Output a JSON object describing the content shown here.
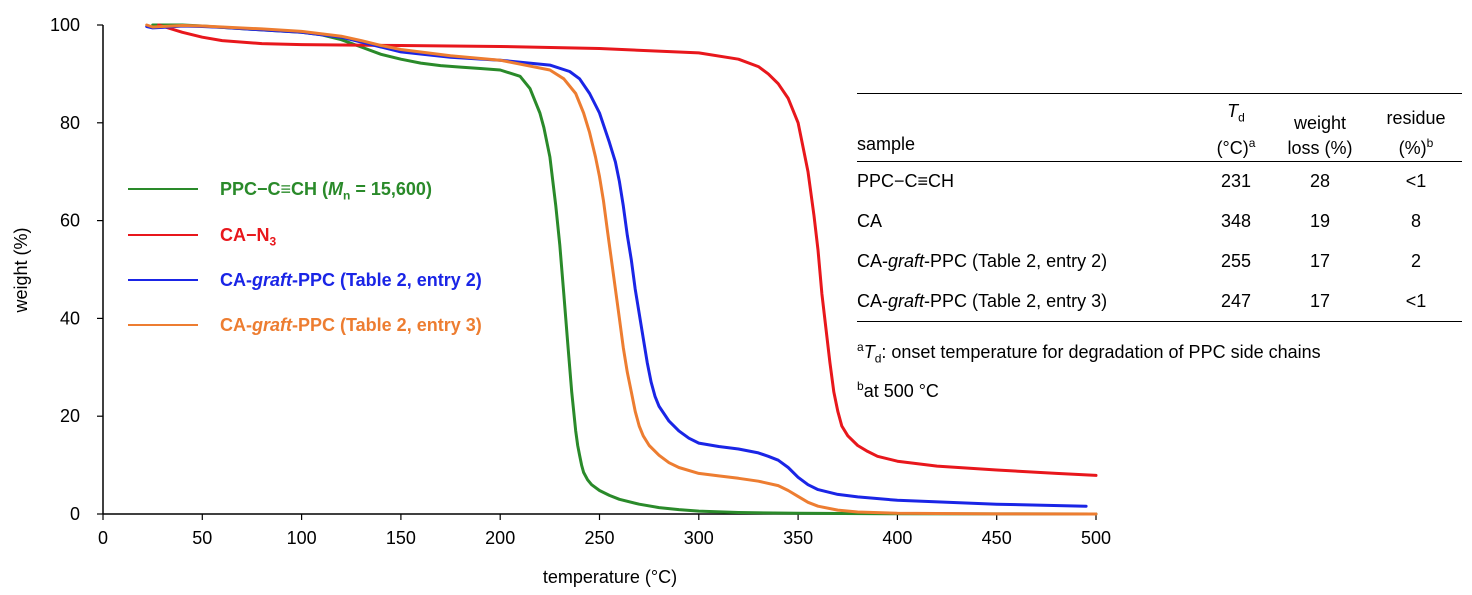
{
  "chart_data": {
    "type": "line",
    "xlabel": "temperature (°C)",
    "ylabel": "weight (%)",
    "xlim": [
      0,
      500
    ],
    "ylim": [
      0,
      100
    ],
    "xticks": [
      0,
      50,
      100,
      150,
      200,
      250,
      300,
      350,
      400,
      450,
      500
    ],
    "yticks": [
      0,
      20,
      40,
      60,
      80,
      100
    ],
    "grid": false,
    "legend_position": "left-middle",
    "series": [
      {
        "name": "PPC−C≡CH (Mn = 15,600)",
        "color": "#2a8a2a",
        "x": [
          25,
          30,
          40,
          50,
          60,
          80,
          100,
          110,
          120,
          130,
          140,
          150,
          160,
          170,
          180,
          190,
          200,
          210,
          215,
          220,
          222,
          225,
          228,
          230,
          232,
          234,
          236,
          238,
          239,
          240,
          241,
          242,
          244,
          246,
          250,
          255,
          260,
          270,
          280,
          290,
          300,
          320,
          350,
          400,
          450,
          500
        ],
        "y": [
          100,
          100,
          100,
          99.8,
          99.5,
          99,
          98.5,
          98,
          97,
          95.5,
          94,
          93,
          92.2,
          91.7,
          91.4,
          91.1,
          90.8,
          89.5,
          87,
          82,
          79,
          73,
          63,
          55,
          45,
          35,
          25,
          17,
          14,
          12,
          10,
          8.5,
          7,
          6,
          4.8,
          3.8,
          3,
          2,
          1.3,
          0.9,
          0.6,
          0.3,
          0.15,
          0.05,
          0.02,
          0
        ]
      },
      {
        "name": "CA−N3",
        "color": "#e8171c",
        "x": [
          28,
          40,
          50,
          60,
          80,
          100,
          150,
          200,
          250,
          300,
          320,
          330,
          335,
          340,
          345,
          350,
          352,
          355,
          358,
          360,
          362,
          364,
          366,
          368,
          370,
          372,
          375,
          380,
          385,
          390,
          400,
          420,
          450,
          480,
          500
        ],
        "y": [
          100,
          98.5,
          97.5,
          96.8,
          96.2,
          96,
          95.8,
          95.6,
          95.2,
          94.3,
          93,
          91.5,
          90,
          88,
          85,
          80,
          76,
          70,
          61,
          54,
          45,
          38,
          31,
          25,
          21,
          18,
          16,
          14,
          12.8,
          11.8,
          10.8,
          9.8,
          9,
          8.3,
          7.9
        ]
      },
      {
        "name": "CA-graft-PPC (Table 2, entry 2)",
        "color": "#1a25e6",
        "x": [
          22,
          25,
          30,
          40,
          50,
          60,
          80,
          100,
          120,
          130,
          140,
          150,
          175,
          200,
          225,
          235,
          240,
          245,
          250,
          255,
          258,
          260,
          262,
          264,
          266,
          268,
          270,
          272,
          274,
          276,
          278,
          280,
          285,
          290,
          295,
          300,
          310,
          320,
          330,
          335,
          340,
          345,
          350,
          355,
          360,
          370,
          380,
          400,
          450,
          495
        ],
        "y": [
          99.7,
          99.4,
          99.5,
          99.8,
          99.7,
          99.5,
          99,
          98.5,
          97.5,
          96.5,
          95.5,
          94.5,
          93.4,
          92.8,
          91.8,
          90.5,
          89,
          86,
          82,
          76,
          72,
          68,
          63,
          57,
          52,
          46,
          41,
          36,
          31,
          27,
          24,
          22,
          19,
          17,
          15.5,
          14.5,
          13.8,
          13.3,
          12.5,
          11.8,
          11,
          9.5,
          7.5,
          6,
          5,
          4,
          3.5,
          2.8,
          2,
          1.6
        ]
      },
      {
        "name": "CA-graft-PPC (Table 2, entry 3)",
        "color": "#ed7d31",
        "x": [
          22,
          25,
          30,
          40,
          50,
          60,
          80,
          100,
          120,
          130,
          140,
          150,
          175,
          200,
          225,
          232,
          238,
          242,
          245,
          248,
          250,
          252,
          254,
          256,
          258,
          260,
          262,
          264,
          266,
          268,
          270,
          272,
          275,
          280,
          285,
          290,
          300,
          310,
          320,
          330,
          340,
          345,
          350,
          355,
          360,
          370,
          380,
          400,
          450,
          500
        ],
        "y": [
          100,
          99.6,
          99.7,
          99.9,
          99.8,
          99.6,
          99.2,
          98.7,
          97.7,
          96.8,
          95.8,
          95,
          93.7,
          92.8,
          90.8,
          89,
          86,
          82,
          78,
          73,
          69,
          64,
          58,
          52,
          46,
          40,
          34,
          29,
          25,
          21,
          18,
          16,
          14,
          12,
          10.5,
          9.5,
          8.3,
          7.8,
          7.3,
          6.7,
          5.8,
          4.8,
          3.6,
          2.4,
          1.6,
          0.8,
          0.4,
          0.15,
          0.03,
          0
        ]
      }
    ]
  },
  "legend": [
    {
      "label": "PPC−C≡CH (",
      "ital": "M",
      "sub": "n",
      "rest": " = 15,600)",
      "color": "#2a8a2a"
    },
    {
      "label": "CA−N",
      "ital": "",
      "sub": "3",
      "rest": "",
      "color": "#e8171c"
    },
    {
      "label": "CA-",
      "ital": "graft",
      "sub": "",
      "rest": "-PPC (Table 2, entry 2)",
      "color": "#1a25e6"
    },
    {
      "label": "CA-",
      "ital": "graft",
      "sub": "",
      "rest": "-PPC (Table 2, entry 3)",
      "color": "#ed7d31"
    }
  ],
  "table": {
    "headers": {
      "sample": "sample",
      "td_symbol": "T",
      "td_sub": "d",
      "td_unit": "(°C)",
      "td_sup": "a",
      "wl_line1": "weight",
      "wl_line2": "loss (%)",
      "res_line1": "residue",
      "res_line2": "(%)",
      "res_sup": "b"
    },
    "rows": [
      {
        "pre": "PPC−C≡CH",
        "ital": "",
        "post": "",
        "td": "231",
        "wl": "28",
        "res": "<1"
      },
      {
        "pre": "CA",
        "ital": "",
        "post": "",
        "td": "348",
        "wl": "19",
        "res": "8"
      },
      {
        "pre": "CA-",
        "ital": "graft",
        "post": "-PPC (Table 2, entry 2)",
        "td": "255",
        "wl": "17",
        "res": "2"
      },
      {
        "pre": "CA-",
        "ital": "graft",
        "post": "-PPC (Table 2, entry 3)",
        "td": "247",
        "wl": "17",
        "res": "<1"
      }
    ],
    "notes": {
      "a_sup": "a",
      "a_sym": "T",
      "a_sub": "d",
      "a_text": ": onset temperature for degradation of PPC side chains",
      "b_sup": "b",
      "b_text": "at 500 °C"
    }
  }
}
